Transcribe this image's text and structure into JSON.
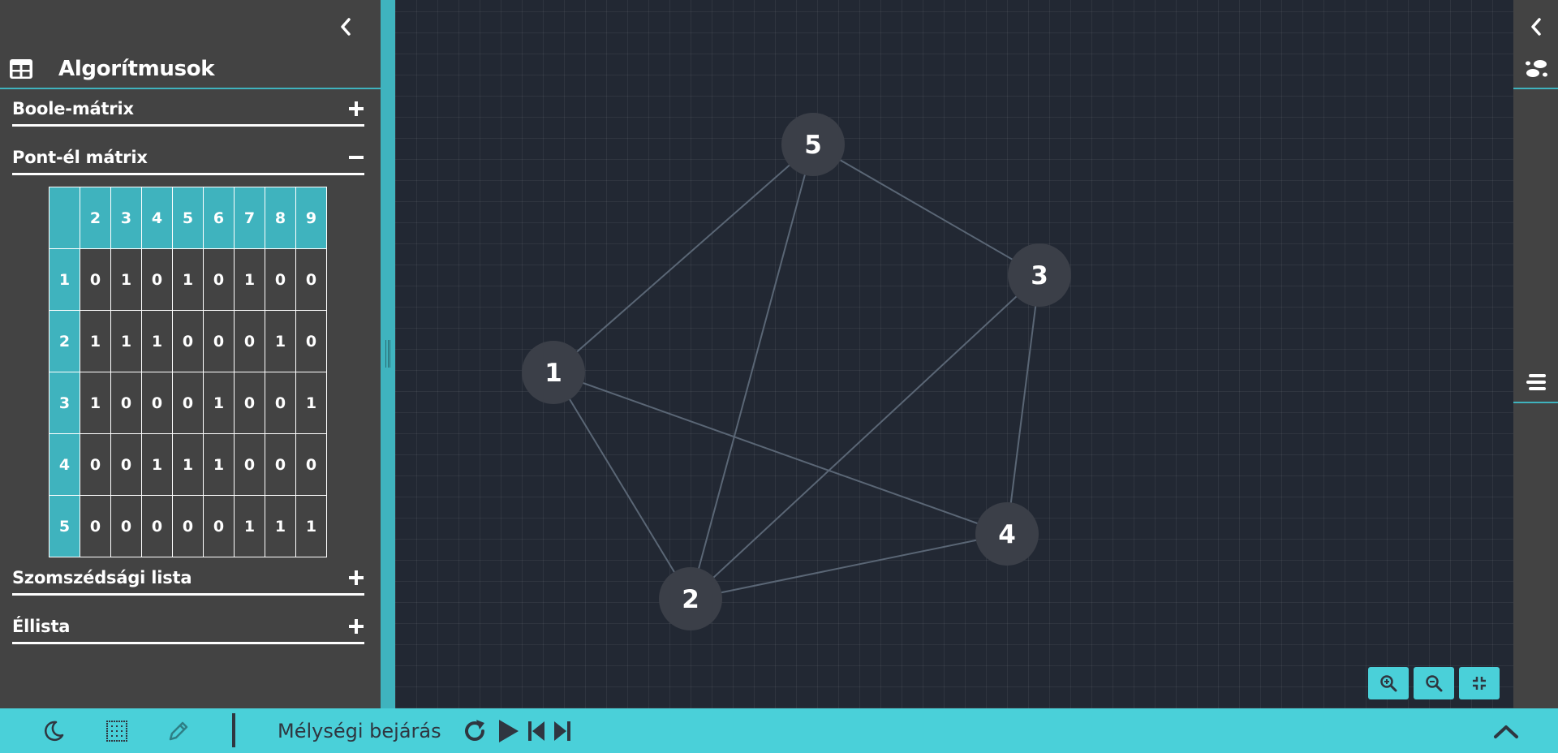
{
  "sidebar": {
    "title": "Algorítmusok",
    "header_icon": "table-icon",
    "collapse_icon": "chevron-left-icon",
    "sections": [
      {
        "title": "Boole-mátrix",
        "state": "collapsed"
      },
      {
        "title": "Pont-él mátrix",
        "state": "expanded"
      },
      {
        "title": "Szomszédsági lista",
        "state": "collapsed"
      },
      {
        "title": "Éllista",
        "state": "collapsed"
      }
    ],
    "matrix": {
      "col_headers": [
        "2",
        "3",
        "4",
        "5",
        "6",
        "7",
        "8",
        "9"
      ],
      "rows": [
        {
          "label": "1",
          "cells": [
            "0",
            "1",
            "0",
            "1",
            "0",
            "1",
            "0",
            "0"
          ]
        },
        {
          "label": "2",
          "cells": [
            "1",
            "1",
            "1",
            "0",
            "0",
            "0",
            "1",
            "0"
          ]
        },
        {
          "label": "3",
          "cells": [
            "1",
            "0",
            "0",
            "0",
            "1",
            "0",
            "0",
            "1"
          ]
        },
        {
          "label": "4",
          "cells": [
            "0",
            "0",
            "1",
            "1",
            "1",
            "0",
            "0",
            "0"
          ]
        },
        {
          "label": "5",
          "cells": [
            "0",
            "0",
            "0",
            "0",
            "0",
            "1",
            "1",
            "1"
          ]
        }
      ]
    }
  },
  "graph": {
    "nodes": [
      {
        "id": "1",
        "label": "1"
      },
      {
        "id": "2",
        "label": "2"
      },
      {
        "id": "3",
        "label": "3"
      },
      {
        "id": "4",
        "label": "4"
      },
      {
        "id": "5",
        "label": "5"
      }
    ],
    "edges": [
      [
        "1",
        "5"
      ],
      [
        "1",
        "2"
      ],
      [
        "1",
        "4"
      ],
      [
        "5",
        "2"
      ],
      [
        "5",
        "3"
      ],
      [
        "3",
        "2"
      ],
      [
        "3",
        "4"
      ],
      [
        "2",
        "4"
      ]
    ],
    "colors": {
      "node_fill": "#3b3f48",
      "edge": "#5a6675",
      "label": "#ffffff",
      "grid": "#2c3340"
    }
  },
  "zoom_controls": [
    "zoom-in-icon",
    "zoom-out-icon",
    "fit-screen-icon"
  ],
  "right_sidebar": {
    "icons": [
      "chevron-left-icon",
      "footsteps-icon",
      "list-icon"
    ]
  },
  "bottom_bar": {
    "algorithm_name": "Mélységi bejárás",
    "icons": [
      "moon-icon",
      "grid-icon",
      "pencil-icon",
      "restart-icon",
      "play-icon",
      "step-back-icon",
      "step-forward-icon",
      "chevron-up-icon"
    ]
  },
  "colors": {
    "accent": "#4ad0d9",
    "sidebar_bg": "#434343",
    "canvas_bg": "#222833"
  }
}
